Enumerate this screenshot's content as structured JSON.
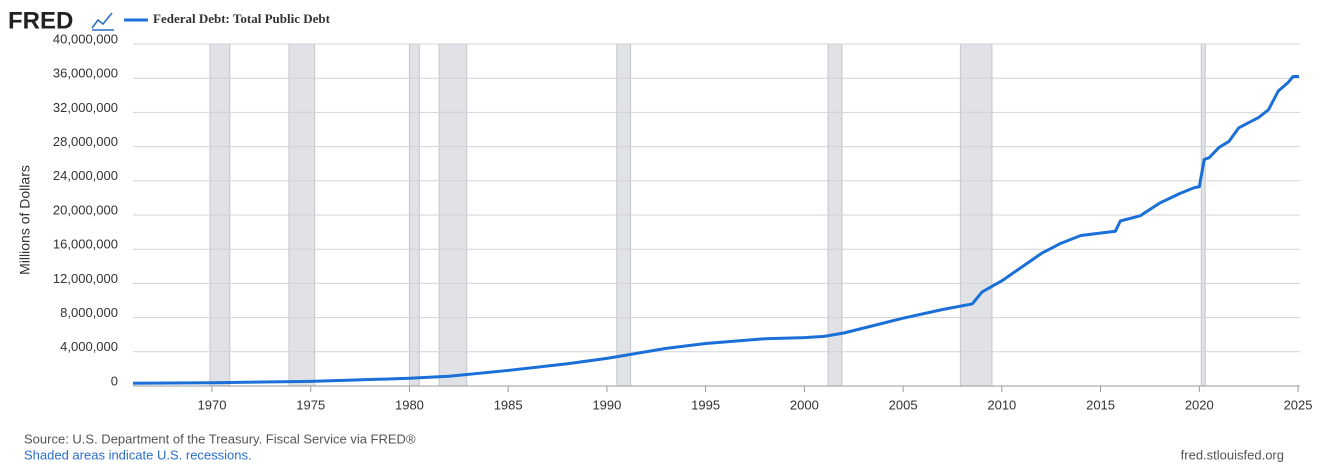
{
  "chart_data": {
    "type": "line",
    "logo": "FRED",
    "y_label": "Millions of Dollars",
    "source": "Source: U.S. Department of the Treasury. Fiscal Service via FRED®",
    "note": "Shaded areas indicate U.S. recessions.",
    "site": "fred.stlouisfed.org",
    "x": [
      1966,
      1970,
      1975,
      1980,
      1982,
      1985,
      1988,
      1990,
      1993,
      1995,
      1998,
      2000,
      2001,
      2002,
      2005,
      2007,
      2008.5,
      2009,
      2010,
      2012,
      2013,
      2014,
      2015.75,
      2016,
      2017,
      2018,
      2019,
      2019.75,
      2020,
      2020.25,
      2020.5,
      2021,
      2021.5,
      2022,
      2022.5,
      2023,
      2023.5,
      2024,
      2024.5,
      2024.75,
      2025.05
    ],
    "series": [
      {
        "name": "Federal Debt: Total Public Debt",
        "color": "#1a70d6",
        "values": [
          320000,
          380000,
          540000,
          900000,
          1140000,
          1820000,
          2600000,
          3230000,
          4400000,
          4970000,
          5530000,
          5660000,
          5800000,
          6200000,
          7930000,
          8950000,
          9600000,
          11000000,
          12300000,
          15500000,
          16700000,
          17600000,
          18100000,
          19300000,
          19900000,
          21400000,
          22500000,
          23200000,
          23300000,
          26500000,
          26700000,
          27900000,
          28600000,
          30200000,
          30800000,
          31400000,
          32300000,
          34500000,
          35500000,
          36200000,
          36200000
        ]
      }
    ],
    "recessions": [
      [
        1969.9,
        1970.9
      ],
      [
        1973.9,
        1975.2
      ],
      [
        1980.0,
        1980.5
      ],
      [
        1981.5,
        1982.9
      ],
      [
        1990.5,
        1991.2
      ],
      [
        2001.2,
        2001.9
      ],
      [
        2007.9,
        2009.5
      ],
      [
        2020.1,
        2020.3
      ]
    ],
    "recession_color": "#e1e2e6",
    "xlim": [
      1966,
      2025.1
    ],
    "xticks": [
      1970,
      1975,
      1980,
      1985,
      1990,
      1995,
      2000,
      2005,
      2010,
      2015,
      2020,
      2025
    ],
    "ylim": [
      0,
      40000000
    ],
    "yticks": [
      0,
      {
        "value": 4000000,
        "label": "4,000,000"
      },
      {
        "value": 8000000,
        "label": "8,000,000"
      },
      {
        "value": 12000000,
        "label": "12,000,000"
      },
      {
        "value": 16000000,
        "label": "16,000,000"
      },
      {
        "value": 20000000,
        "label": "20,000,000"
      },
      {
        "value": 24000000,
        "label": "24,000,000"
      },
      {
        "value": 28000000,
        "label": "28,000,000"
      },
      {
        "value": 32000000,
        "label": "32,000,000"
      },
      {
        "value": 36000000,
        "label": "36,000,000"
      },
      {
        "value": 40000000,
        "label": "40,000,000"
      }
    ],
    "grid": true
  }
}
